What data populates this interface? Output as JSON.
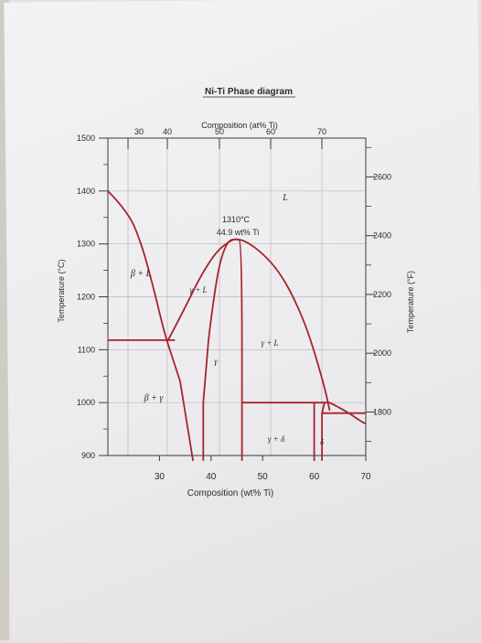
{
  "chart_data": {
    "type": "phase-diagram",
    "title": "Ni-Ti Phase diagram",
    "top_axis": {
      "label": "Composition (at% Ti)",
      "ticks": [
        "30",
        "40",
        "50",
        "60",
        "70"
      ]
    },
    "bottom_axis": {
      "label": "Composition (wt% Ti)",
      "ticks": [
        "30",
        "40",
        "50",
        "60",
        "70"
      ],
      "range": [
        20,
        70
      ]
    },
    "left_axis": {
      "label": "Temperature (°C)",
      "ticks": [
        "1500",
        "1400",
        "1300",
        "1200",
        "1100",
        "1000",
        "900"
      ],
      "range": [
        900,
        1500
      ]
    },
    "right_axis": {
      "label": "Temperature (°F)",
      "ticks": [
        "2600",
        "2400",
        "2200",
        "2000",
        "1800"
      ]
    },
    "annotation": {
      "line1": "1310°C",
      "line2": "44.9 wt% Ti"
    },
    "regions": [
      "L",
      "β + L",
      "γ + L",
      "γ + L",
      "γ",
      "β + γ",
      "γ + δ",
      "δ"
    ],
    "boundaries": {
      "liquidus_left": [
        [
          20,
          1400
        ],
        [
          24,
          1360
        ],
        [
          26.5,
          1300
        ],
        [
          28.5,
          1230
        ],
        [
          30.5,
          1150
        ],
        [
          31.5,
          1115
        ]
      ],
      "liquidus_right": [
        [
          31.5,
          1115
        ],
        [
          35,
          1180
        ],
        [
          38,
          1240
        ],
        [
          41,
          1285
        ],
        [
          43.5,
          1305
        ],
        [
          44.9,
          1310
        ],
        [
          47,
          1304
        ],
        [
          50,
          1282
        ],
        [
          53,
          1250
        ],
        [
          56,
          1200
        ],
        [
          59,
          1130
        ],
        [
          62,
          1030
        ],
        [
          63,
          985
        ]
      ],
      "eutectic_left": [
        [
          20,
          1118
        ],
        [
          33,
          1118
        ]
      ],
      "gamma_left": [
        [
          31.5,
          1115
        ],
        [
          34,
          1040
        ],
        [
          36.5,
          890
        ]
      ],
      "gamma_left_lower": [
        [
          38.5,
          890
        ],
        [
          38.5,
          1000
        ],
        [
          39.5,
          1118
        ]
      ],
      "gamma_solidus": [
        [
          39.5,
          1118
        ],
        [
          41,
          1240
        ],
        [
          43,
          1305
        ],
        [
          44.9,
          1310
        ],
        [
          46,
          1305
        ],
        [
          46,
          890
        ]
      ],
      "eutectic_right": [
        [
          46,
          1000
        ],
        [
          63,
          1000
        ]
      ],
      "delta_left": [
        [
          60,
          1000
        ],
        [
          60,
          890
        ]
      ],
      "delta_right": [
        [
          62,
          1000
        ],
        [
          61.5,
          980
        ],
        [
          61.5,
          890
        ]
      ],
      "delta_line": [
        [
          61.5,
          980
        ],
        [
          70,
          980
        ]
      ],
      "right_liquidus_tail": [
        [
          63,
          1000
        ],
        [
          66,
          985
        ],
        [
          69,
          965
        ],
        [
          70,
          960
        ]
      ]
    }
  }
}
